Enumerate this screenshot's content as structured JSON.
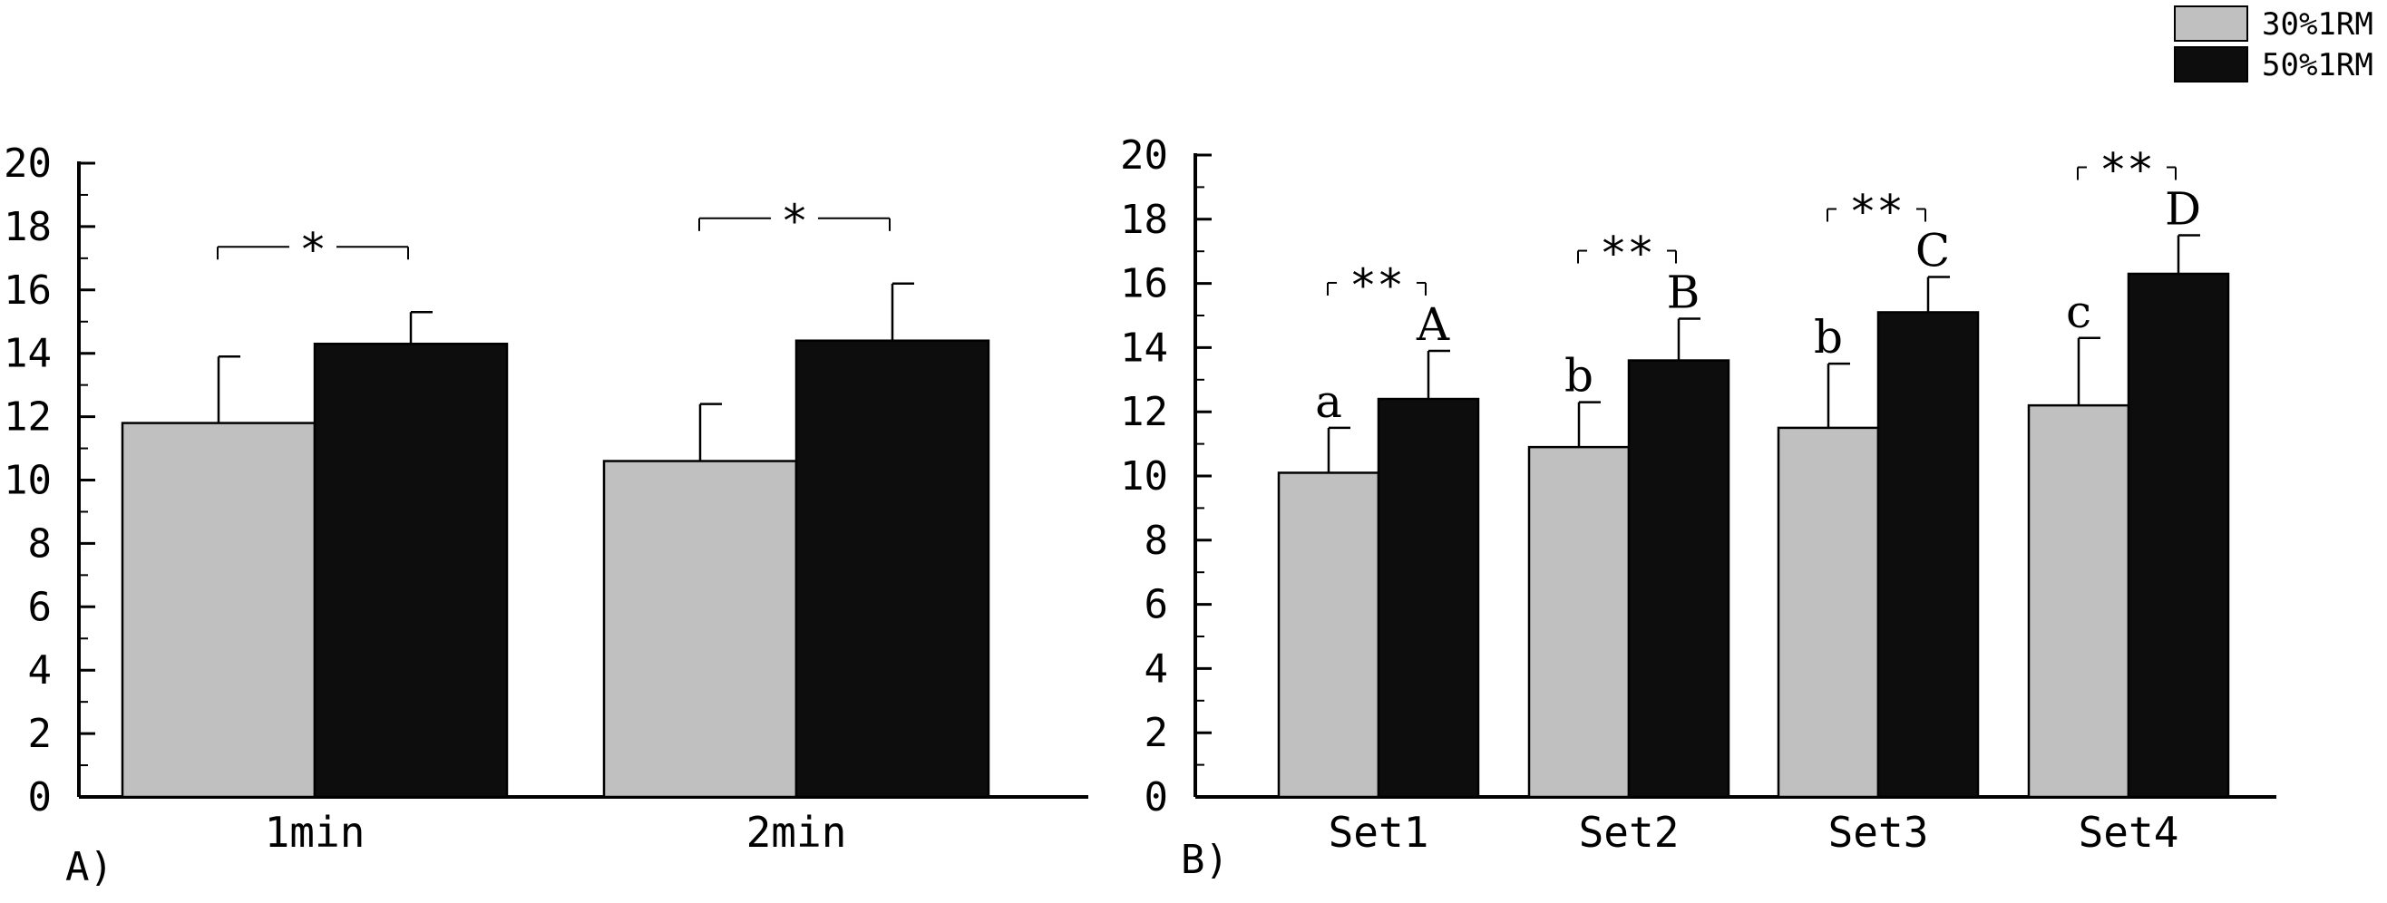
{
  "legend": {
    "items": [
      {
        "label": "30%1RM",
        "color": "#c0c0c0"
      },
      {
        "label": "50%1RM",
        "color": "#0d0d0d"
      }
    ],
    "placement": "top-right"
  },
  "chart_data": [
    {
      "type": "bar",
      "panel_label": "A)",
      "categories": [
        "1min",
        "2min"
      ],
      "series": [
        {
          "name": "30%1RM",
          "values": [
            11.8,
            10.6
          ],
          "errors": [
            2.1,
            1.8
          ]
        },
        {
          "name": "50%1RM",
          "values": [
            14.3,
            14.4
          ],
          "errors": [
            1.0,
            1.8
          ]
        }
      ],
      "ylim": [
        0,
        20
      ],
      "yticks": [
        0,
        2,
        4,
        6,
        8,
        10,
        12,
        14,
        16,
        18,
        20
      ],
      "significance": [
        "*",
        "*"
      ],
      "letters": [],
      "grid": false
    },
    {
      "type": "bar",
      "panel_label": "B)",
      "categories": [
        "Set1",
        "Set2",
        "Set3",
        "Set4"
      ],
      "series": [
        {
          "name": "30%1RM",
          "values": [
            10.1,
            10.9,
            11.5,
            12.2
          ],
          "errors": [
            1.4,
            1.4,
            2.0,
            2.1
          ]
        },
        {
          "name": "50%1RM",
          "values": [
            12.4,
            13.6,
            15.1,
            16.3
          ],
          "errors": [
            1.5,
            1.3,
            1.1,
            1.2
          ]
        }
      ],
      "ylim": [
        0,
        20
      ],
      "yticks": [
        0,
        2,
        4,
        6,
        8,
        10,
        12,
        14,
        16,
        18,
        20
      ],
      "significance": [
        "**",
        "**",
        "**",
        "**"
      ],
      "letters": [
        [
          "a",
          "A"
        ],
        [
          "b",
          "B"
        ],
        [
          "b",
          "C"
        ],
        [
          "c",
          "D"
        ]
      ],
      "grid": false
    }
  ]
}
